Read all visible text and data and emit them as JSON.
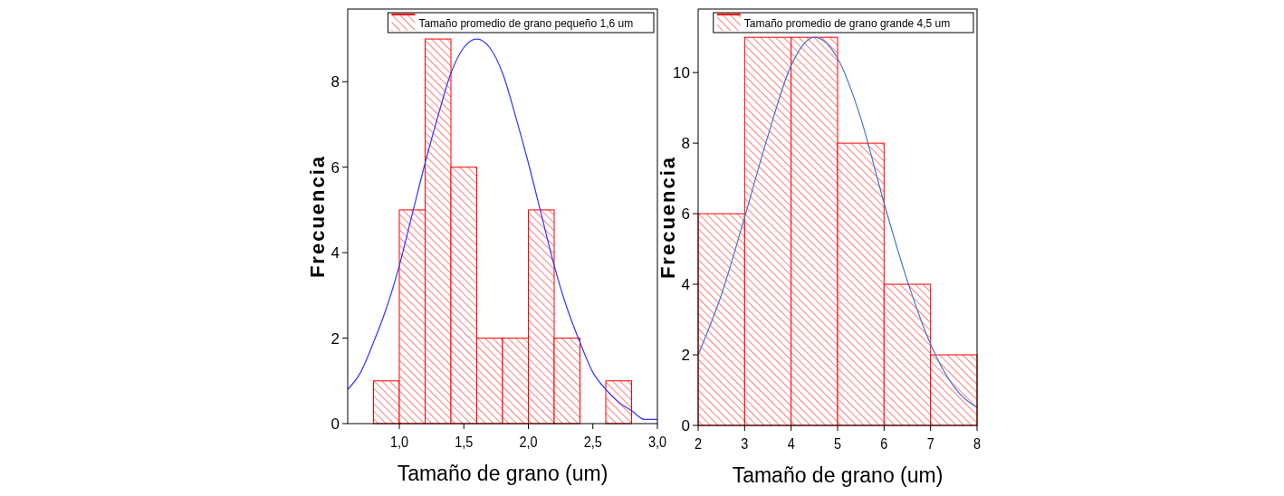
{
  "chart_data": [
    {
      "type": "histogram",
      "xlabel": "Tamaño de grano (um)",
      "ylabel": "Frecuencia",
      "bins": [
        0.8,
        1.0,
        1.2,
        1.4,
        1.6,
        1.8,
        2.0,
        2.2,
        2.4,
        2.6,
        2.8
      ],
      "series": [
        {
          "name": "Tamaño promedio de grano pequeño 1,6 um",
          "color": "#ff0000",
          "values": [
            1,
            5,
            9,
            6,
            2,
            2,
            5,
            2,
            0,
            1
          ]
        },
        {
          "type": "line",
          "color": "#3333ff",
          "x": [
            0.6,
            0.7,
            0.8,
            0.9,
            1.0,
            1.1,
            1.2,
            1.3,
            1.4,
            1.5,
            1.6,
            1.7,
            1.8,
            1.9,
            2.0,
            2.1,
            2.2,
            2.3,
            2.4,
            2.5,
            2.6,
            2.7,
            2.8,
            2.9,
            3.0
          ],
          "values": [
            0.8,
            1.2,
            1.9,
            2.7,
            3.7,
            4.9,
            6.1,
            7.2,
            8.2,
            8.8,
            9.0,
            8.8,
            8.2,
            7.2,
            6.1,
            4.9,
            3.7,
            2.7,
            1.9,
            1.2,
            0.8,
            0.5,
            0.3,
            0.1,
            0.1
          ]
        }
      ],
      "xlim": [
        0.6,
        3.0
      ],
      "ylim": [
        0,
        9.7
      ],
      "xticks": [
        {
          "value": 1.0,
          "label": "1,0"
        },
        {
          "value": 1.5,
          "label": "1,5"
        },
        {
          "value": 2.0,
          "label": "2,0"
        },
        {
          "value": 2.5,
          "label": "2,5"
        },
        {
          "value": 3.0,
          "label": "3,0"
        }
      ],
      "yticks": [
        0,
        2,
        4,
        6,
        8
      ],
      "legend": "top right",
      "grid": false
    },
    {
      "type": "histogram",
      "xlabel": "Tamaño de grano (um)",
      "ylabel": "Frecuencia",
      "bins": [
        2,
        3,
        4,
        5,
        6,
        7,
        8
      ],
      "series": [
        {
          "name": "Tamaño promedio de grano grande 4,5 um",
          "color": "#ff0000",
          "values": [
            6,
            11,
            11,
            8,
            4,
            2
          ]
        },
        {
          "type": "line",
          "color": "#4477cc",
          "x": [
            2.0,
            2.5,
            3.0,
            3.5,
            4.0,
            4.5,
            5.0,
            5.5,
            6.0,
            6.5,
            7.0,
            7.5,
            8.0
          ],
          "values": [
            2.0,
            3.7,
            5.9,
            8.2,
            10.2,
            11.0,
            10.4,
            8.7,
            6.3,
            4.1,
            2.3,
            1.1,
            0.5
          ]
        }
      ],
      "xlim": [
        2,
        8
      ],
      "ylim": [
        0,
        11.8
      ],
      "xticks": [
        2,
        3,
        4,
        5,
        6,
        7,
        8
      ],
      "yticks": [
        0,
        2,
        4,
        6,
        8,
        10
      ],
      "legend": "top right",
      "grid": false
    }
  ]
}
